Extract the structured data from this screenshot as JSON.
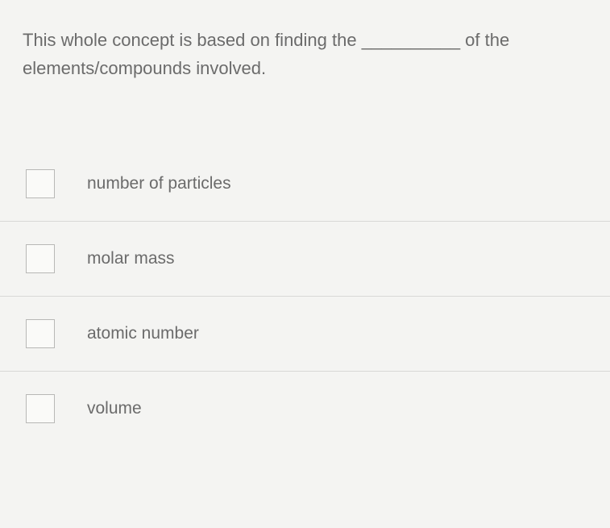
{
  "question": {
    "text": "This whole concept is based on finding the __________ of the elements/compounds involved.",
    "text_color": "#6b6b6b",
    "fontsize": 22
  },
  "options": [
    {
      "label": "number of particles",
      "checked": false
    },
    {
      "label": "molar mass",
      "checked": false
    },
    {
      "label": "atomic number",
      "checked": false
    },
    {
      "label": "volume",
      "checked": false
    }
  ],
  "styling": {
    "background_color": "#f4f4f2",
    "checkbox_border_color": "#b8b8b6",
    "checkbox_bg_color": "#fafaf8",
    "divider_color": "#d8d8d6",
    "option_text_color": "#6b6b6b",
    "option_fontsize": 21
  }
}
